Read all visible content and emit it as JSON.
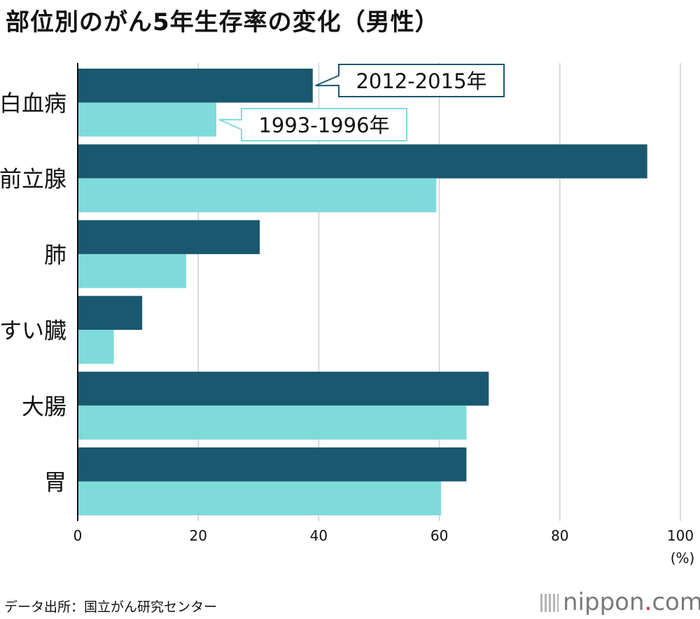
{
  "chart_data": {
    "type": "bar",
    "orientation": "horizontal",
    "title": "部位別のがん5年生存率の変化（男性）",
    "unit_label": "(%)",
    "categories": [
      "白血病",
      "前立腺",
      "肺",
      "すい臓",
      "大腸",
      "胃"
    ],
    "series": [
      {
        "name": "2012-2015年",
        "color": "#1a5870",
        "values": [
          39.0,
          94.5,
          30.2,
          10.7,
          68.2,
          64.5
        ]
      },
      {
        "name": "1993-1996年",
        "color": "#7fdbda",
        "values": [
          23.0,
          59.5,
          18.0,
          6.0,
          64.5,
          60.3
        ]
      }
    ],
    "xlim": [
      0,
      100
    ],
    "x_ticks": [
      "0",
      "20",
      "40",
      "60",
      "80",
      "100"
    ],
    "grid": true,
    "legend": "callouts"
  },
  "source": "データ出所：国立がん研究センター",
  "brand": {
    "name": "nippon",
    "dot": ".",
    "tld": "com"
  }
}
